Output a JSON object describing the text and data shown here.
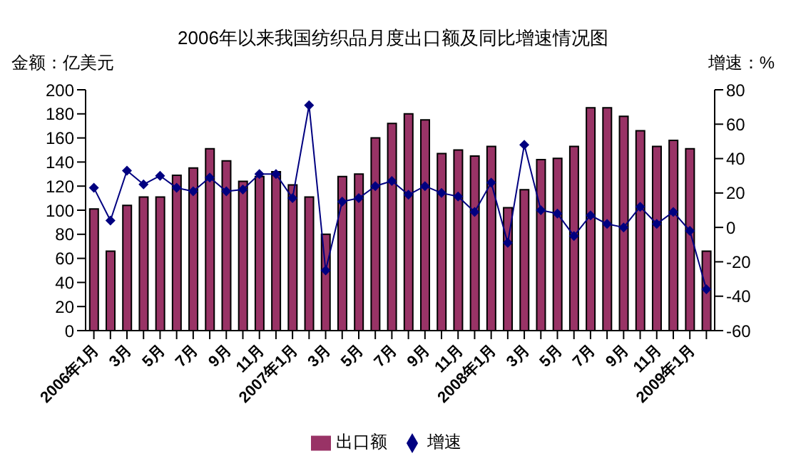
{
  "chart_data": {
    "type": "bar",
    "title": "2006年以来我国纺织品月度出口额及同比增速情况图",
    "ylabel": "金额：亿美元",
    "y2label": "增速：%",
    "categories": [
      "2006年1月",
      null,
      "3月",
      null,
      "5月",
      null,
      "7月",
      null,
      "9月",
      null,
      "11月",
      null,
      "2007年1月",
      null,
      "3月",
      null,
      "5月",
      null,
      "7月",
      null,
      "9月",
      null,
      "11月",
      null,
      "2008年1月",
      null,
      "3月",
      null,
      "5月",
      null,
      "7月",
      null,
      "9月",
      null,
      "11月",
      null,
      "2009年1月",
      null
    ],
    "series": [
      {
        "name": "出口额",
        "color": "#993366",
        "values": [
          101,
          66,
          104,
          111,
          111,
          129,
          135,
          151,
          141,
          124,
          128,
          132,
          121,
          111,
          80,
          128,
          130,
          160,
          172,
          180,
          175,
          147,
          150,
          145,
          153,
          102,
          117,
          142,
          143,
          153,
          185,
          185,
          178,
          166,
          153,
          158,
          151,
          66
        ]
      },
      {
        "name": "增速",
        "type": "line",
        "axis": "y2",
        "color": "#000080",
        "marker": "diamond",
        "values": [
          23,
          4,
          33,
          25,
          30,
          23,
          21,
          29,
          21,
          22,
          31,
          31,
          17,
          71,
          -25,
          15,
          17,
          24,
          27,
          19,
          24,
          20,
          18,
          9,
          26,
          -9,
          48,
          10,
          8,
          -5,
          7,
          2,
          0,
          12,
          2,
          9,
          -2,
          -36
        ]
      }
    ],
    "ylim": [
      0,
      200
    ],
    "yticks": [
      0,
      20,
      40,
      60,
      80,
      100,
      120,
      140,
      160,
      180,
      200
    ],
    "y2lim": [
      -60,
      80
    ],
    "y2ticks": [
      -60,
      -40,
      -20,
      0,
      20,
      40,
      60,
      80
    ],
    "grid": false,
    "legend": "bottom"
  }
}
